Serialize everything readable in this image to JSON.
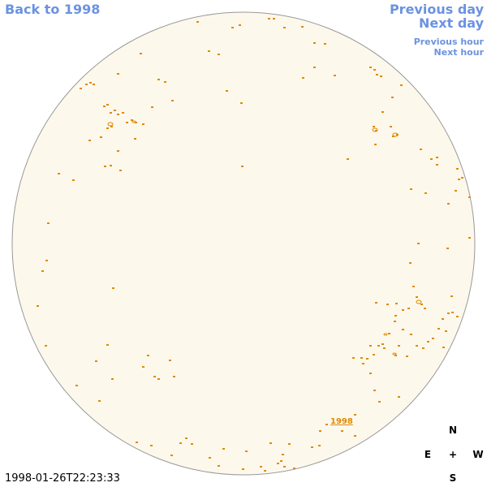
{
  "nav": {
    "back": "Back to 1998",
    "previous_day": "Previous day",
    "next_day": "Next day",
    "previous_hour": "Previous hour",
    "next_hour": "Next hour"
  },
  "disk": {
    "fill": "#fdf8ec",
    "stroke": "#999999",
    "feature_color": "#e08a00",
    "year_label": "1998"
  },
  "timestamp": "1998-01-26T22:23:33",
  "compass": {
    "north": "N",
    "east": "E",
    "center": "+",
    "west": "W",
    "south": "S"
  }
}
